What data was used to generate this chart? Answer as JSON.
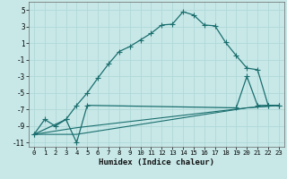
{
  "title": "",
  "xlabel": "Humidex (Indice chaleur)",
  "bg_color": "#c8e8e8",
  "grid_color": "#b0d8d8",
  "line_color": "#1a6e6e",
  "xlim": [
    -0.5,
    23.5
  ],
  "ylim": [
    -11.5,
    6.0
  ],
  "xticks": [
    0,
    1,
    2,
    3,
    4,
    5,
    6,
    7,
    8,
    9,
    10,
    11,
    12,
    13,
    14,
    15,
    16,
    17,
    18,
    19,
    20,
    21,
    22,
    23
  ],
  "yticks": [
    -11,
    -9,
    -7,
    -5,
    -3,
    -1,
    1,
    3,
    5
  ],
  "curve1_x": [
    0,
    1,
    2,
    3,
    4,
    5,
    6,
    7,
    8,
    9,
    10,
    11,
    12,
    13,
    14,
    15,
    16,
    17,
    18,
    19,
    20,
    21,
    22,
    23
  ],
  "curve1_y": [
    -10.0,
    -8.2,
    -9.0,
    -8.2,
    -6.5,
    -5.0,
    -3.2,
    -1.5,
    0.0,
    0.6,
    1.4,
    2.2,
    3.2,
    3.3,
    4.8,
    4.4,
    3.2,
    3.1,
    1.1,
    -0.5,
    -2.0,
    -2.2,
    -6.5,
    -6.5
  ],
  "curve2_x": [
    0,
    3,
    4,
    5,
    19,
    20,
    21,
    22,
    23
  ],
  "curve2_y": [
    -10.0,
    -8.2,
    -11.0,
    -6.5,
    -6.8,
    -3.0,
    -6.5,
    -6.5,
    -6.5
  ],
  "curve3_x": [
    0,
    4,
    20,
    23
  ],
  "curve3_y": [
    -10.0,
    -10.0,
    -6.8,
    -6.5
  ],
  "curve4_x": [
    0,
    4,
    20,
    23
  ],
  "curve4_y": [
    -10.0,
    -9.2,
    -6.8,
    -6.5
  ],
  "marker_size": 4
}
